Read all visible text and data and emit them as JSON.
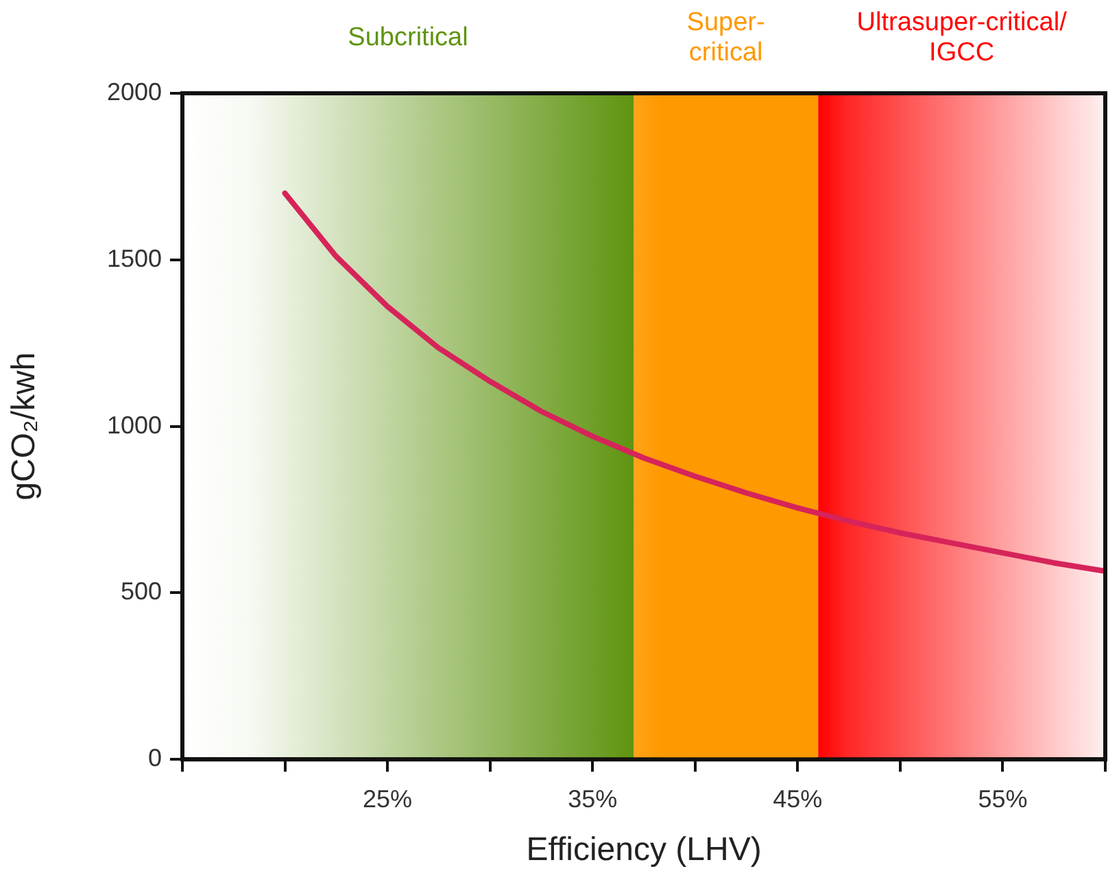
{
  "chart_data": {
    "type": "line",
    "xlabel": "Efficiency (LHV)",
    "ylabel": "gCO₂/kwh",
    "x": [
      20,
      22.5,
      25,
      27.5,
      30,
      32.5,
      35,
      37.5,
      40,
      42.5,
      45,
      47.5,
      50,
      52.5,
      55,
      57.5,
      60
    ],
    "series": [
      {
        "color": "#d6245a",
        "values": [
          1700,
          1510,
          1360,
          1235,
          1135,
          1045,
          970,
          905,
          850,
          800,
          755,
          715,
          680,
          650,
          620,
          590,
          565
        ]
      }
    ],
    "xlim": [
      15,
      60
    ],
    "xticks": [
      {
        "value": 15,
        "label": null
      },
      {
        "value": 20,
        "label": null
      },
      {
        "value": 25,
        "label": "25%"
      },
      {
        "value": 30,
        "label": null
      },
      {
        "value": 35,
        "label": "35%"
      },
      {
        "value": 40,
        "label": null
      },
      {
        "value": 45,
        "label": "45%"
      },
      {
        "value": 50,
        "label": null
      },
      {
        "value": 55,
        "label": "55%"
      },
      {
        "value": 60,
        "label": null
      }
    ],
    "ylim": [
      0,
      2000
    ],
    "yticks": [
      0,
      500,
      1000,
      1500,
      2000
    ],
    "bands": [
      {
        "axis": "x",
        "from": 15,
        "to": 37,
        "label": "Subcritical",
        "color": "#5f9410"
      },
      {
        "axis": "x",
        "from": 37,
        "to": 46,
        "label": "Super-critical",
        "color": "#ff9900"
      },
      {
        "axis": "x",
        "from": 46,
        "to": 60,
        "label": "Ultrasuper-critical/IGCC",
        "color": "#ff0000"
      }
    ],
    "grid": false,
    "legend": false,
    "marker": "none",
    "line_style": "solid"
  }
}
